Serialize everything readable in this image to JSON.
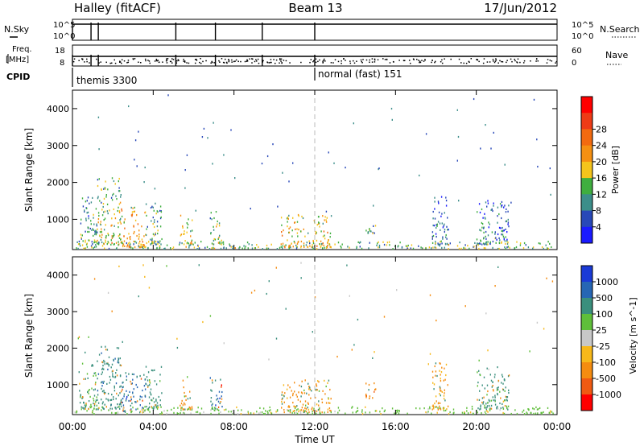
{
  "header": {
    "station": "Halley (fitACF)",
    "beam": "Beam 13",
    "date": "17/Jun/2012"
  },
  "panels": {
    "nsky": {
      "left_label": "N.Sky",
      "left_ticks": [
        "10^5",
        "10^0"
      ],
      "right_ticks": [
        "10^5",
        "10^0"
      ],
      "right_label": "N.Search"
    },
    "freq": {
      "left_label_1": "Freq.",
      "left_label_2": "[MHz]",
      "left_ticks": [
        "18",
        "8"
      ],
      "right_ticks": [
        "60",
        "0"
      ],
      "right_label": "Nave"
    },
    "cpid": {
      "label": "CPID",
      "modes": [
        {
          "name": "themis 3300",
          "start_hour": 0
        },
        {
          "name": "normal (fast) 151",
          "start_hour": 12
        }
      ]
    },
    "transitions_hours": [
      0.0,
      0.92,
      1.28,
      5.12,
      7.08,
      9.4,
      12.0
    ]
  },
  "chart_data": [
    {
      "type": "heatmap",
      "title": "",
      "quantity": "Power",
      "colorbar_label": "Power [dB]",
      "colorbar_ticks": [
        "4",
        "8",
        "12",
        "16",
        "20",
        "24",
        "28"
      ],
      "colorbar_colors": [
        "#1a1aff",
        "#2848b8",
        "#3c8e8a",
        "#3fae3f",
        "#f4c41c",
        "#f59012",
        "#f26a10",
        "#ee3b16",
        "#ff0000"
      ],
      "ylabel": "Slant Range [km]",
      "yticks": [
        "1000",
        "2000",
        "3000",
        "4000"
      ],
      "ylim": [
        180,
        4500
      ],
      "xlim_hours": [
        0,
        24
      ],
      "regions": [
        {
          "x0": 0.3,
          "x1": 1.2,
          "y0": 300,
          "y1": 1600,
          "value": 12
        },
        {
          "x0": 1.2,
          "x1": 2.4,
          "y0": 300,
          "y1": 2100,
          "value": 18
        },
        {
          "x0": 2.4,
          "x1": 3.6,
          "y0": 220,
          "y1": 1300,
          "value": 22
        },
        {
          "x0": 3.6,
          "x1": 4.4,
          "y0": 300,
          "y1": 1500,
          "value": 14
        },
        {
          "x0": 5.3,
          "x1": 5.9,
          "y0": 300,
          "y1": 1100,
          "value": 18
        },
        {
          "x0": 6.8,
          "x1": 7.4,
          "y0": 300,
          "y1": 1200,
          "value": 16
        },
        {
          "x0": 10.3,
          "x1": 12.8,
          "y0": 220,
          "y1": 1100,
          "value": 20
        },
        {
          "x0": 14.5,
          "x1": 15.0,
          "y0": 600,
          "y1": 1100,
          "value": 12
        },
        {
          "x0": 17.8,
          "x1": 18.6,
          "y0": 300,
          "y1": 1600,
          "value": 10
        },
        {
          "x0": 20.0,
          "x1": 21.6,
          "y0": 300,
          "y1": 1500,
          "value": 10
        },
        {
          "x0": 0.0,
          "x1": 23.8,
          "y0": 180,
          "y1": 380,
          "value": 14
        }
      ]
    },
    {
      "type": "heatmap",
      "title": "",
      "quantity": "Velocity",
      "colorbar_label": "Velocity [m s^-1]",
      "colorbar_ticks": [
        "1000",
        "500",
        "100",
        "25",
        "-25",
        "-100",
        "-500",
        "-1000"
      ],
      "colorbar_colors": [
        "#1a3ad6",
        "#2666b4",
        "#3a8f7d",
        "#5fbf3a",
        "#c8c8c8",
        "#f7b81a",
        "#f58c10",
        "#f05a12",
        "#ff0000"
      ],
      "ylabel": "Slant Range [km]",
      "yticks": [
        "1000",
        "2000",
        "3000",
        "4000"
      ],
      "ylim": [
        180,
        4500
      ],
      "xlim_hours": [
        0,
        24
      ],
      "regions": [
        {
          "x0": 0.3,
          "x1": 1.2,
          "y0": 300,
          "y1": 1600,
          "value": 100
        },
        {
          "x0": 1.2,
          "x1": 2.4,
          "y0": 300,
          "y1": 2100,
          "value": 300
        },
        {
          "x0": 2.4,
          "x1": 3.6,
          "y0": 220,
          "y1": 1300,
          "value": 600
        },
        {
          "x0": 3.6,
          "x1": 4.4,
          "y0": 300,
          "y1": 1500,
          "value": 200
        },
        {
          "x0": 5.3,
          "x1": 5.9,
          "y0": 300,
          "y1": 1100,
          "value": -300
        },
        {
          "x0": 6.8,
          "x1": 7.4,
          "y0": 300,
          "y1": 1200,
          "value": 600
        },
        {
          "x0": 10.3,
          "x1": 12.8,
          "y0": 220,
          "y1": 1100,
          "value": -150
        },
        {
          "x0": 14.5,
          "x1": 15.0,
          "y0": 600,
          "y1": 1100,
          "value": -300
        },
        {
          "x0": 17.8,
          "x1": 18.6,
          "y0": 300,
          "y1": 1600,
          "value": -120
        },
        {
          "x0": 20.0,
          "x1": 21.6,
          "y0": 300,
          "y1": 1500,
          "value": 200
        },
        {
          "x0": 0.0,
          "x1": 23.8,
          "y0": 180,
          "y1": 380,
          "value": 50
        }
      ]
    }
  ],
  "xaxis": {
    "ticks": [
      "00:00",
      "04:00",
      "08:00",
      "12:00",
      "16:00",
      "20:00",
      "00:00"
    ],
    "label": "Time UT"
  }
}
